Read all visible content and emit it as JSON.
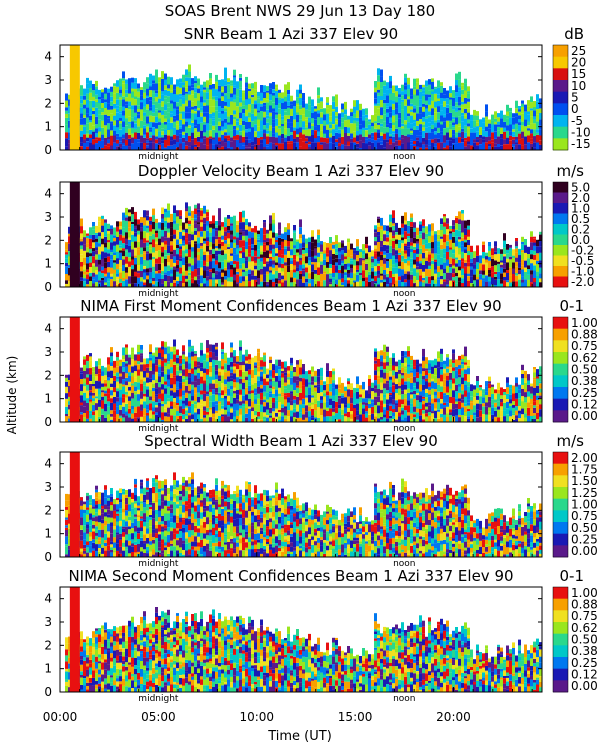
{
  "header": {
    "line1": "SOAS Brent NWS  29 Jun 13 Day 180"
  },
  "y_axis_label": "Altitude (km)",
  "x_axis_label": "Time (UT)",
  "x_ticks": [
    "00:00",
    "05:00",
    "10:00",
    "15:00",
    "20:00"
  ],
  "x_tick_hours": [
    0,
    5,
    10,
    15,
    20
  ],
  "x_range_hours": [
    0,
    24.5
  ],
  "markers": {
    "midnight": "midnight",
    "noon": "noon",
    "midnight_hour": 5.0,
    "noon_hour": 17.5
  },
  "chart_data": [
    {
      "type": "heatmap",
      "title": "SNR Beam 1 Azi 337 Elev 90",
      "unit": "dB",
      "ylim": [
        0,
        4.5
      ],
      "yticks": [
        "0",
        "1",
        "2",
        "3",
        "4"
      ],
      "ytick_values": [
        0,
        1,
        2,
        3,
        4
      ],
      "colorbar_labels": [
        "25",
        "20",
        "15",
        "10",
        "5",
        "0",
        "-5",
        "-10",
        "-15"
      ],
      "colorbar_colors": [
        "#f7a000",
        "#f7c800",
        "#d81010",
        "#5a1a8a",
        "#1a1ab4",
        "#0050f0",
        "#00b4f0",
        "#2ad88c",
        "#9ae61e"
      ]
    },
    {
      "type": "heatmap",
      "title": "Doppler Velocity Beam 1 Azi 337 Elev 90",
      "unit": "m/s",
      "ylim": [
        0,
        4.5
      ],
      "yticks": [
        "0",
        "1",
        "2",
        "3",
        "4"
      ],
      "ytick_values": [
        0,
        1,
        2,
        3,
        4
      ],
      "colorbar_labels": [
        "5.0",
        "2.0",
        "1.0",
        "0.5",
        "0.2",
        "0.0",
        "-0.2",
        "-0.5",
        "-1.0",
        "-2.0"
      ],
      "colorbar_colors": [
        "#300020",
        "#5a1a8a",
        "#1a1ab4",
        "#0078f0",
        "#00c8c8",
        "#2ad88c",
        "#9ae61e",
        "#f0e020",
        "#f7a000",
        "#e81010"
      ]
    },
    {
      "type": "heatmap",
      "title": "NIMA First Moment Confidences Beam 1 Azi 337 Elev 90",
      "unit": "0-1",
      "ylim": [
        0,
        4.5
      ],
      "yticks": [
        "0",
        "1",
        "2",
        "3",
        "4"
      ],
      "ytick_values": [
        0,
        1,
        2,
        3,
        4
      ],
      "colorbar_labels": [
        "1.00",
        "0.88",
        "0.75",
        "0.62",
        "0.50",
        "0.38",
        "0.25",
        "0.12",
        "0.00"
      ],
      "colorbar_colors": [
        "#e81010",
        "#f7a000",
        "#f0e020",
        "#9ae61e",
        "#2ad88c",
        "#00c8c8",
        "#0078f0",
        "#1a1ab4",
        "#5a1a8a"
      ]
    },
    {
      "type": "heatmap",
      "title": "Spectral Width Beam 1 Azi 337 Elev 90",
      "unit": "m/s",
      "ylim": [
        0,
        4.5
      ],
      "yticks": [
        "0",
        "1",
        "2",
        "3",
        "4"
      ],
      "ytick_values": [
        0,
        1,
        2,
        3,
        4
      ],
      "colorbar_labels": [
        "2.00",
        "1.75",
        "1.50",
        "1.25",
        "1.00",
        "0.75",
        "0.50",
        "0.25",
        "0.00"
      ],
      "colorbar_colors": [
        "#e81010",
        "#f7a000",
        "#f0e020",
        "#9ae61e",
        "#2ad88c",
        "#00c8c8",
        "#0078f0",
        "#1a1ab4",
        "#5a1a8a"
      ]
    },
    {
      "type": "heatmap",
      "title": "NIMA Second Moment Confidences Beam 1 Azi 337 Elev 90",
      "unit": "0-1",
      "ylim": [
        0,
        4.5
      ],
      "yticks": [
        "0",
        "1",
        "2",
        "3",
        "4"
      ],
      "ytick_values": [
        0,
        1,
        2,
        3,
        4
      ],
      "colorbar_labels": [
        "1.00",
        "0.88",
        "0.75",
        "0.62",
        "0.50",
        "0.38",
        "0.25",
        "0.12",
        "0.00"
      ],
      "colorbar_colors": [
        "#e81010",
        "#f7a000",
        "#f0e020",
        "#9ae61e",
        "#2ad88c",
        "#00c8c8",
        "#0078f0",
        "#1a1ab4",
        "#5a1a8a"
      ]
    }
  ]
}
